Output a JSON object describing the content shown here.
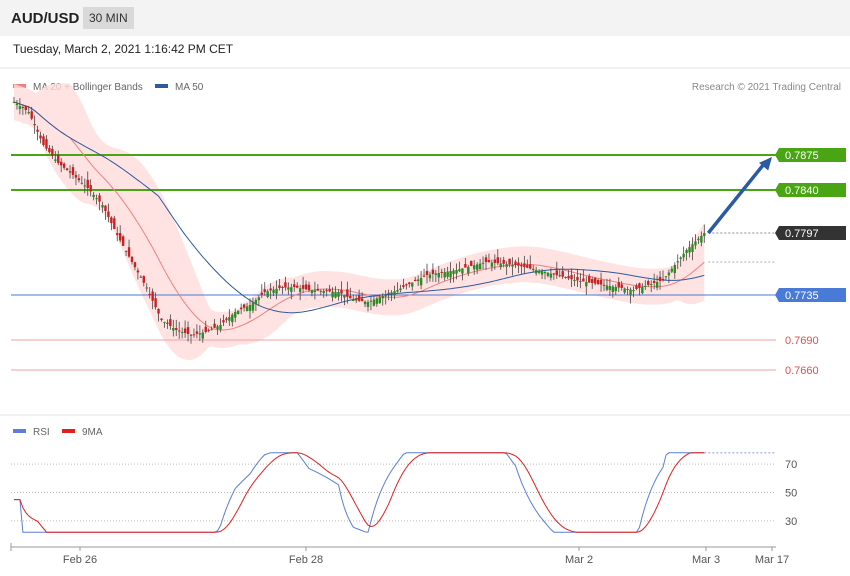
{
  "header": {
    "symbol": "AUD/USD",
    "timeframe": "30 MIN"
  },
  "timestamp": "Tuesday, March 2, 2021 1:16:42 PM CET",
  "chart_data": [
    {
      "type": "candlestick",
      "title": "AUD/USD",
      "copyright": "Research © 2021 Trading Central",
      "legend": [
        {
          "name": "MA 20 + Bollinger Bands",
          "color": "#f08080"
        },
        {
          "name": "MA 50",
          "color": "#2f5a9e"
        }
      ],
      "price_axis": {
        "range": [
          0.7615,
          0.7935
        ]
      },
      "x_ticks": [
        "Feb 26",
        "Feb 28",
        "Mar 2",
        "Mar 3",
        "Mar 17"
      ],
      "levels": [
        {
          "value": "0.7875",
          "type": "resistance",
          "color": "#4aa514"
        },
        {
          "value": "0.7840",
          "type": "resistance",
          "color": "#4aa514"
        },
        {
          "value": "0.7797",
          "type": "last_price",
          "color": "#333333"
        },
        {
          "value": "0.7735",
          "type": "pivot",
          "color": "#4a7ad8"
        },
        {
          "value": "0.7690",
          "type": "support",
          "color": "#e05050"
        },
        {
          "value": "0.7660",
          "type": "support",
          "color": "#e05050"
        }
      ],
      "close_path": [
        [
          0,
          0.7928
        ],
        [
          5,
          0.7918
        ],
        [
          10,
          0.7885
        ],
        [
          15,
          0.7867
        ],
        [
          20,
          0.7855
        ],
        [
          25,
          0.7842
        ],
        [
          30,
          0.7825
        ],
        [
          35,
          0.7795
        ],
        [
          40,
          0.7768
        ],
        [
          45,
          0.7742
        ],
        [
          50,
          0.771
        ],
        [
          55,
          0.77
        ],
        [
          60,
          0.7695
        ],
        [
          65,
          0.7698
        ],
        [
          70,
          0.7705
        ],
        [
          75,
          0.7718
        ],
        [
          80,
          0.7725
        ],
        [
          82,
          0.773
        ],
        [
          85,
          0.7738
        ],
        [
          90,
          0.7742
        ],
        [
          95,
          0.7743
        ],
        [
          100,
          0.774
        ],
        [
          110,
          0.7738
        ],
        [
          115,
          0.773
        ],
        [
          120,
          0.7728
        ],
        [
          130,
          0.774
        ],
        [
          140,
          0.7755
        ],
        [
          150,
          0.776
        ],
        [
          160,
          0.7768
        ],
        [
          170,
          0.7765
        ],
        [
          180,
          0.7758
        ],
        [
          190,
          0.775
        ],
        [
          200,
          0.7745
        ],
        [
          210,
          0.774
        ],
        [
          220,
          0.775
        ],
        [
          228,
          0.778
        ],
        [
          234,
          0.7797
        ]
      ],
      "projection": {
        "from": 0.7797,
        "to": 0.7875
      }
    },
    {
      "type": "line",
      "title": "RSI",
      "series": [
        {
          "name": "RSI",
          "color": "#5b7fd6"
        },
        {
          "name": "9MA",
          "color": "#e02020"
        }
      ],
      "y_ticks": [
        "70",
        "50",
        "30"
      ],
      "ylim": [
        20,
        80
      ]
    }
  ]
}
